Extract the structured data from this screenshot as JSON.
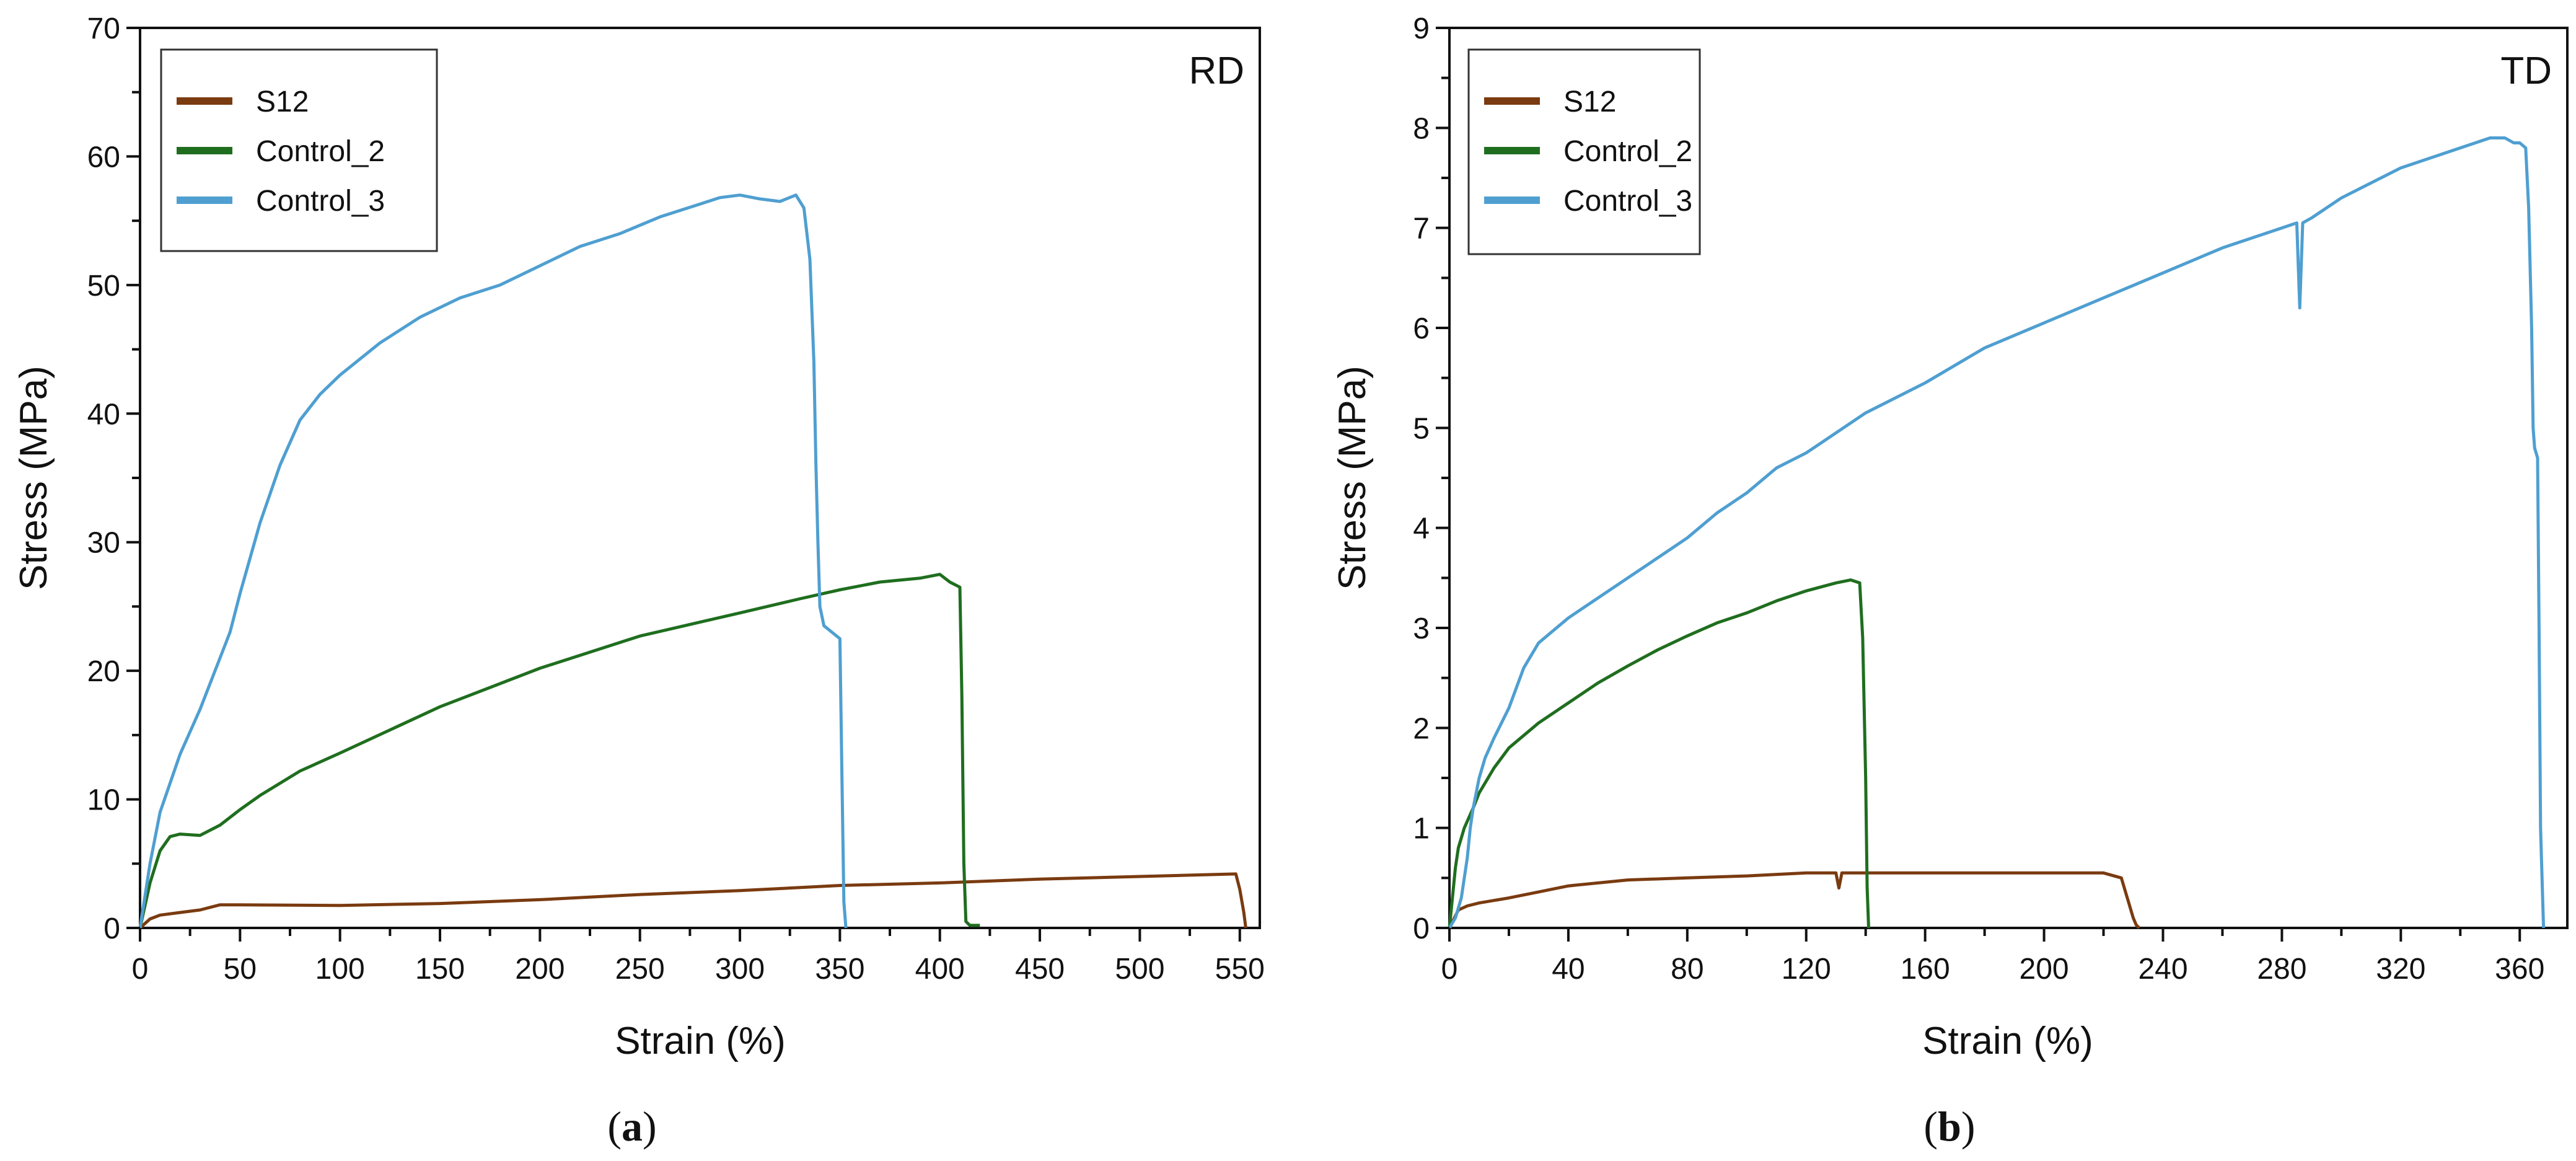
{
  "chart_data": [
    {
      "type": "line",
      "panel_label": "RD",
      "caption_open": "(",
      "caption_letter": "a",
      "caption_close": ")",
      "xlabel": "Strain (%)",
      "ylabel": "Stress (MPa)",
      "xlim": [
        0,
        560
      ],
      "ylim": [
        0,
        70
      ],
      "xticks": [
        0,
        50,
        100,
        150,
        200,
        250,
        300,
        350,
        400,
        450,
        500,
        550
      ],
      "yticks": [
        0,
        10,
        20,
        30,
        40,
        50,
        60,
        70
      ],
      "legend": "top-left",
      "grid": false,
      "series": [
        {
          "name": "S12",
          "color": "#7a3b10",
          "x": [
            0,
            5,
            10,
            20,
            30,
            40,
            50,
            100,
            150,
            200,
            250,
            300,
            350,
            400,
            450,
            500,
            548,
            550,
            552,
            553
          ],
          "y": [
            0,
            0.7,
            1.0,
            1.2,
            1.4,
            1.8,
            1.8,
            1.75,
            1.9,
            2.2,
            2.6,
            2.9,
            3.3,
            3.5,
            3.8,
            4.0,
            4.2,
            3.0,
            1.2,
            0
          ]
        },
        {
          "name": "Control_2",
          "color": "#1f6e1f",
          "x": [
            0,
            5,
            10,
            15,
            20,
            30,
            40,
            50,
            60,
            80,
            100,
            150,
            200,
            250,
            300,
            330,
            350,
            370,
            390,
            400,
            405,
            410,
            411,
            412,
            413,
            415,
            420
          ],
          "y": [
            0,
            3.5,
            6.0,
            7.1,
            7.3,
            7.2,
            8.0,
            9.2,
            10.3,
            12.2,
            13.6,
            17.2,
            20.2,
            22.7,
            24.5,
            25.6,
            26.3,
            26.9,
            27.2,
            27.5,
            26.9,
            26.5,
            18.0,
            5.0,
            0.5,
            0.2,
            0.2
          ]
        },
        {
          "name": "Control_3",
          "color": "#4f9fd1",
          "x": [
            0,
            5,
            10,
            20,
            30,
            40,
            45,
            50,
            60,
            70,
            80,
            90,
            100,
            120,
            140,
            160,
            180,
            200,
            220,
            240,
            260,
            280,
            290,
            300,
            310,
            320,
            328,
            332,
            335,
            337,
            338,
            339,
            340,
            342,
            346,
            350,
            351,
            352,
            353
          ],
          "y": [
            0,
            5.0,
            9.0,
            13.5,
            17.0,
            21.0,
            23.0,
            26.0,
            31.5,
            36.0,
            39.5,
            41.5,
            43.0,
            45.5,
            47.5,
            49.0,
            50.0,
            51.5,
            53.0,
            54.0,
            55.3,
            56.3,
            56.8,
            57.0,
            56.7,
            56.5,
            57.0,
            56.0,
            52.0,
            44.0,
            36.0,
            30.0,
            25.0,
            23.5,
            23.0,
            22.5,
            12.0,
            2.0,
            0
          ]
        }
      ]
    },
    {
      "type": "line",
      "panel_label": "TD",
      "caption_open": "(",
      "caption_letter": "b",
      "caption_close": ")",
      "xlabel": "Strain (%)",
      "ylabel": "Stress (MPa)",
      "xlim": [
        0,
        376
      ],
      "ylim": [
        0,
        9
      ],
      "xticks": [
        0,
        40,
        80,
        120,
        160,
        200,
        240,
        280,
        320,
        360
      ],
      "yticks": [
        0,
        1,
        2,
        3,
        4,
        5,
        6,
        7,
        8,
        9
      ],
      "legend": "top-left",
      "grid": false,
      "series": [
        {
          "name": "S12",
          "color": "#7a3b10",
          "x": [
            0,
            3,
            6,
            10,
            20,
            30,
            40,
            60,
            80,
            100,
            120,
            130,
            131,
            132,
            140,
            160,
            180,
            200,
            210,
            220,
            226,
            228,
            230,
            231,
            232
          ],
          "y": [
            0,
            0.18,
            0.22,
            0.25,
            0.3,
            0.36,
            0.42,
            0.48,
            0.5,
            0.52,
            0.55,
            0.55,
            0.4,
            0.55,
            0.55,
            0.55,
            0.55,
            0.55,
            0.55,
            0.55,
            0.5,
            0.3,
            0.1,
            0.03,
            0
          ]
        },
        {
          "name": "Control_2",
          "color": "#1f6e1f",
          "x": [
            0,
            1,
            2,
            3,
            5,
            8,
            10,
            15,
            20,
            30,
            40,
            50,
            60,
            70,
            80,
            90,
            100,
            110,
            120,
            130,
            135,
            138,
            139,
            140,
            140.5,
            141
          ],
          "y": [
            0,
            0.3,
            0.6,
            0.8,
            1.0,
            1.2,
            1.35,
            1.6,
            1.8,
            2.05,
            2.25,
            2.45,
            2.62,
            2.78,
            2.92,
            3.05,
            3.15,
            3.27,
            3.37,
            3.45,
            3.48,
            3.45,
            2.9,
            1.5,
            0.4,
            0
          ]
        },
        {
          "name": "Control_3",
          "color": "#4f9fd1",
          "x": [
            0,
            2,
            4,
            5,
            6,
            7,
            8,
            10,
            12,
            15,
            20,
            25,
            30,
            40,
            50,
            60,
            70,
            80,
            90,
            100,
            110,
            120,
            140,
            160,
            180,
            200,
            220,
            240,
            260,
            280,
            285,
            286,
            287,
            290,
            300,
            320,
            340,
            350,
            355,
            358,
            360,
            362,
            363,
            364,
            364.5,
            365,
            366,
            366.5,
            367,
            368
          ],
          "y": [
            0,
            0.1,
            0.3,
            0.5,
            0.7,
            1.0,
            1.2,
            1.5,
            1.7,
            1.9,
            2.2,
            2.6,
            2.85,
            3.1,
            3.3,
            3.5,
            3.7,
            3.9,
            4.15,
            4.35,
            4.6,
            4.75,
            5.15,
            5.45,
            5.8,
            6.05,
            6.3,
            6.55,
            6.8,
            7.0,
            7.05,
            6.2,
            7.05,
            7.1,
            7.3,
            7.6,
            7.8,
            7.9,
            7.9,
            7.85,
            7.85,
            7.8,
            7.2,
            6.0,
            5.0,
            4.8,
            4.7,
            3.0,
            1.0,
            0
          ]
        }
      ]
    }
  ]
}
